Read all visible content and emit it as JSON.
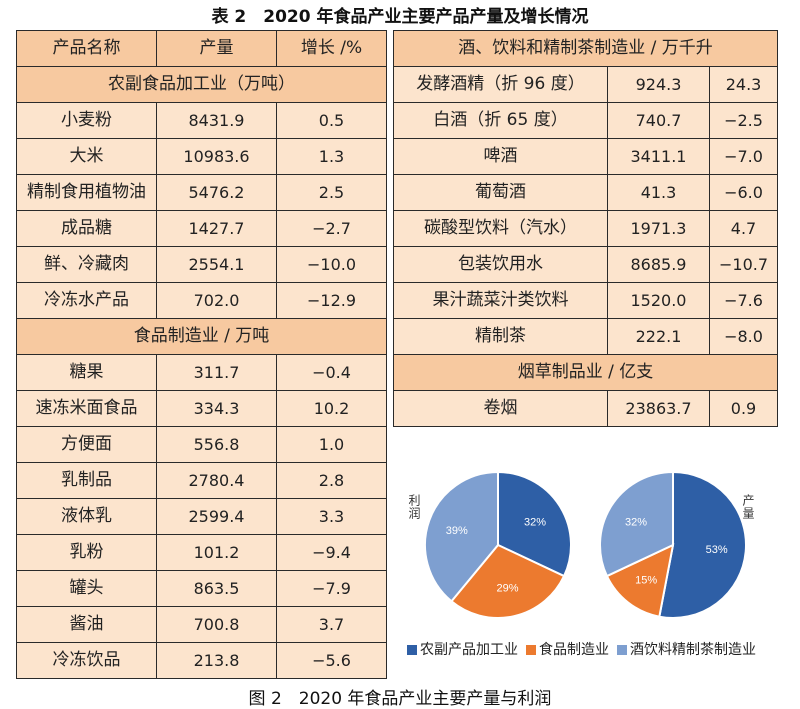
{
  "table_caption": "表 2　2020 年食品产业主要产品产量及增长情况",
  "figure_caption": "图 2　2020 年食品产业主要产量与利润",
  "left_table": {
    "headers": [
      "产品名称",
      "产量",
      "增长 /%"
    ],
    "sections": [
      {
        "title": "农副食品加工业（万吨）",
        "rows": [
          [
            "小麦粉",
            "8431.9",
            "0.5"
          ],
          [
            "大米",
            "10983.6",
            "1.3"
          ],
          [
            "精制食用植物油",
            "5476.2",
            "2.5"
          ],
          [
            "成品糖",
            "1427.7",
            "−2.7"
          ],
          [
            "鲜、冷藏肉",
            "2554.1",
            "−10.0"
          ],
          [
            "冷冻水产品",
            "702.0",
            "−12.9"
          ]
        ]
      },
      {
        "title": "食品制造业 / 万吨",
        "rows": [
          [
            "糖果",
            "311.7",
            "−0.4"
          ],
          [
            "速冻米面食品",
            "334.3",
            "10.2"
          ],
          [
            "方便面",
            "556.8",
            "1.0"
          ],
          [
            "乳制品",
            "2780.4",
            "2.8"
          ],
          [
            "液体乳",
            "2599.4",
            "3.3"
          ],
          [
            "乳粉",
            "101.2",
            "−9.4"
          ],
          [
            "罐头",
            "863.5",
            "−7.9"
          ],
          [
            "酱油",
            "700.8",
            "3.7"
          ],
          [
            "冷冻饮品",
            "213.8",
            "−5.6"
          ]
        ]
      }
    ]
  },
  "right_table": {
    "sections": [
      {
        "title": "酒、饮料和精制茶制造业 / 万千升",
        "rows": [
          [
            "发酵酒精（折 96 度）",
            "924.3",
            "24.3"
          ],
          [
            "白酒（折 65 度）",
            "740.7",
            "−2.5"
          ],
          [
            "啤酒",
            "3411.1",
            "−7.0"
          ],
          [
            "葡萄酒",
            "41.3",
            "−6.0"
          ],
          [
            "碳酸型饮料（汽水）",
            "1971.3",
            "4.7"
          ],
          [
            "包装饮用水",
            "8685.9",
            "−10.7"
          ],
          [
            "果汁蔬菜汁类饮料",
            "1520.0",
            "−7.6"
          ],
          [
            "精制茶",
            "222.1",
            "−8.0"
          ]
        ]
      },
      {
        "title": "烟草制品业 / 亿支",
        "rows": [
          [
            "卷烟",
            "23863.7",
            "0.9"
          ]
        ]
      }
    ]
  },
  "chart_data": [
    {
      "type": "pie",
      "name": "利润",
      "categories": [
        "农副产品加工业",
        "食品制造业",
        "酒饮料精制茶制造业"
      ],
      "values": [
        32,
        29,
        39
      ],
      "labels": [
        "32%",
        "29%",
        "39%"
      ],
      "colors": [
        "#2e5fa6",
        "#ec7a2f",
        "#7e9fd0"
      ]
    },
    {
      "type": "pie",
      "name": "产量",
      "categories": [
        "农副产品加工业",
        "食品制造业",
        "酒饮料精制茶制造业"
      ],
      "values": [
        53,
        15,
        32
      ],
      "labels": [
        "53%",
        "15%",
        "32%"
      ],
      "colors": [
        "#2e5fa6",
        "#ec7a2f",
        "#7e9fd0"
      ]
    }
  ],
  "legend": {
    "items": [
      "农副产品加工业",
      "食品制造业",
      "酒饮料精制茶制造业"
    ],
    "colors": [
      "#2e5fa6",
      "#ec7a2f",
      "#7e9fd0"
    ]
  }
}
